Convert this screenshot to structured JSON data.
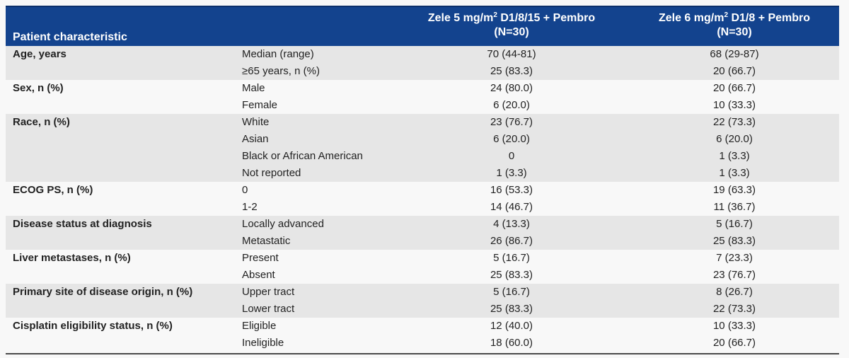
{
  "header": {
    "characteristic": "Patient characteristic",
    "arm1_line1_pre": "Zele 5 mg/m",
    "arm1_line1_sup": "2",
    "arm1_line1_post": " D1/8/15 + Pembro",
    "arm1_line2": "(N=30)",
    "arm2_line1_pre": "Zele 6 mg/m",
    "arm2_line1_sup": "2",
    "arm2_line1_post": " D1/8 + Pembro",
    "arm2_line2": "(N=30)"
  },
  "groups": [
    {
      "name": "Age, years",
      "rows": [
        {
          "sub": "Median (range)",
          "arm1": "70 (44-81)",
          "arm2": "68 (29-87)"
        },
        {
          "sub": "≥65 years, n (%)",
          "arm1": "25 (83.3)",
          "arm2": "20 (66.7)"
        }
      ]
    },
    {
      "name": "Sex, n (%)",
      "rows": [
        {
          "sub": "Male",
          "arm1": "24 (80.0)",
          "arm2": "20 (66.7)"
        },
        {
          "sub": "Female",
          "arm1": "6 (20.0)",
          "arm2": "10 (33.3)"
        }
      ]
    },
    {
      "name": "Race, n (%)",
      "rows": [
        {
          "sub": "White",
          "arm1": "23 (76.7)",
          "arm2": "22 (73.3)"
        },
        {
          "sub": "Asian",
          "arm1": "6 (20.0)",
          "arm2": "6 (20.0)"
        },
        {
          "sub": "Black or African American",
          "arm1": "0",
          "arm2": "1 (3.3)"
        },
        {
          "sub": "Not reported",
          "arm1": "1 (3.3)",
          "arm2": "1 (3.3)"
        }
      ]
    },
    {
      "name": "ECOG PS, n (%)",
      "rows": [
        {
          "sub": "0",
          "arm1": "16 (53.3)",
          "arm2": "19 (63.3)"
        },
        {
          "sub": "1-2",
          "arm1": "14 (46.7)",
          "arm2": "11 (36.7)"
        }
      ]
    },
    {
      "name": "Disease status at diagnosis",
      "rows": [
        {
          "sub": "Locally advanced",
          "arm1": "4 (13.3)",
          "arm2": "5 (16.7)"
        },
        {
          "sub": "Metastatic",
          "arm1": "26 (86.7)",
          "arm2": "25 (83.3)"
        }
      ]
    },
    {
      "name": "Liver metastases, n (%)",
      "rows": [
        {
          "sub": "Present",
          "arm1": "5 (16.7)",
          "arm2": "7 (23.3)"
        },
        {
          "sub": "Absent",
          "arm1": "25 (83.3)",
          "arm2": "23 (76.7)"
        }
      ]
    },
    {
      "name": "Primary site of disease origin, n (%)",
      "rows": [
        {
          "sub": "Upper tract",
          "arm1": "5 (16.7)",
          "arm2": "8 (26.7)"
        },
        {
          "sub": "Lower tract",
          "arm1": "25 (83.3)",
          "arm2": "22 (73.3)"
        }
      ]
    },
    {
      "name": "Cisplatin eligibility status, n (%)",
      "rows": [
        {
          "sub": "Eligible",
          "arm1": "12 (40.0)",
          "arm2": "10 (33.3)"
        },
        {
          "sub": "Ineligible",
          "arm1": "18 (60.0)",
          "arm2": "20 (66.7)"
        }
      ]
    }
  ]
}
